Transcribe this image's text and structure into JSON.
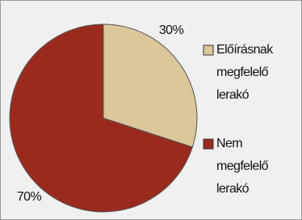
{
  "chart_data": {
    "type": "pie",
    "series": [
      {
        "name": "Előírásnak megfelelő lerakó",
        "color": "#dcc79a",
        "values": [
          30
        ],
        "value_labels": [
          "30%"
        ]
      },
      {
        "name": "Nem megfelelő lerakó",
        "color": "#9b2a1e",
        "values": [
          70
        ],
        "value_labels": [
          "70%"
        ]
      }
    ]
  }
}
